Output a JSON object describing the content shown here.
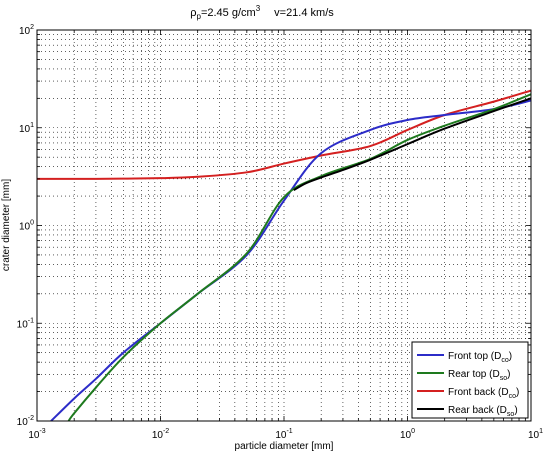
{
  "chart_data": {
    "type": "line",
    "title": {
      "rho_sym": "ρ",
      "rho_sub": "p",
      "rho_text": "=2.45 g/cm",
      "rho_sup": "3",
      "velocity": "v=21.4 km/s"
    },
    "xlabel": "particle diameter [mm]",
    "ylabel": "crater diameter [mm]",
    "x_scale": "log",
    "y_scale": "log",
    "xlim": [
      0.001,
      10
    ],
    "ylim": [
      0.01,
      100
    ],
    "grid": true,
    "legend_position": "bottom-right",
    "x_ticks": [
      {
        "base": "10",
        "exp": "-3"
      },
      {
        "base": "10",
        "exp": "-2"
      },
      {
        "base": "10",
        "exp": "-1"
      },
      {
        "base": "10",
        "exp": "0"
      },
      {
        "base": "10",
        "exp": "1"
      }
    ],
    "y_ticks": [
      {
        "base": "10",
        "exp": "-2"
      },
      {
        "base": "10",
        "exp": "-1"
      },
      {
        "base": "10",
        "exp": "0"
      },
      {
        "base": "10",
        "exp": "1"
      },
      {
        "base": "10",
        "exp": "2"
      }
    ],
    "series": [
      {
        "name_main": "Front top (D",
        "name_sub": "co",
        "name_end": ")",
        "color": "#2c2cc8",
        "x": [
          0.0013,
          0.002,
          0.003,
          0.005,
          0.01,
          0.02,
          0.05,
          0.1,
          0.2,
          0.5,
          1,
          2,
          5,
          10
        ],
        "y": [
          0.01,
          0.017,
          0.027,
          0.05,
          0.1,
          0.2,
          0.5,
          1.8,
          5.5,
          9.5,
          12,
          13.5,
          15.5,
          19
        ]
      },
      {
        "name_main": "Rear top (D",
        "name_sub": "so",
        "name_end": ")",
        "color": "#1e7a1e",
        "x": [
          0.0018,
          0.002,
          0.003,
          0.005,
          0.01,
          0.02,
          0.05,
          0.1,
          0.2,
          0.5,
          1,
          2,
          5,
          10
        ],
        "y": [
          0.01,
          0.012,
          0.022,
          0.045,
          0.1,
          0.2,
          0.52,
          1.95,
          3.2,
          4.8,
          7.5,
          10.5,
          15.5,
          22
        ]
      },
      {
        "name_main": "Front back (D",
        "name_sub": "co",
        "name_end": ")",
        "color": "#d42020",
        "x": [
          0.001,
          0.003,
          0.01,
          0.02,
          0.05,
          0.1,
          0.2,
          0.5,
          1,
          2,
          5,
          10
        ],
        "y": [
          3.0,
          3.0,
          3.05,
          3.15,
          3.5,
          4.3,
          5.2,
          6.5,
          9.5,
          13.5,
          18.5,
          24
        ]
      },
      {
        "name_main": "Rear back (D",
        "name_sub": "so",
        "name_end": ")",
        "color": "#000000",
        "x": [
          0.12,
          0.15,
          0.2,
          0.3,
          0.5,
          1,
          2,
          5,
          10
        ],
        "y": [
          2.3,
          2.7,
          3.1,
          3.7,
          4.7,
          6.8,
          9.8,
          14.8,
          20
        ]
      }
    ]
  }
}
